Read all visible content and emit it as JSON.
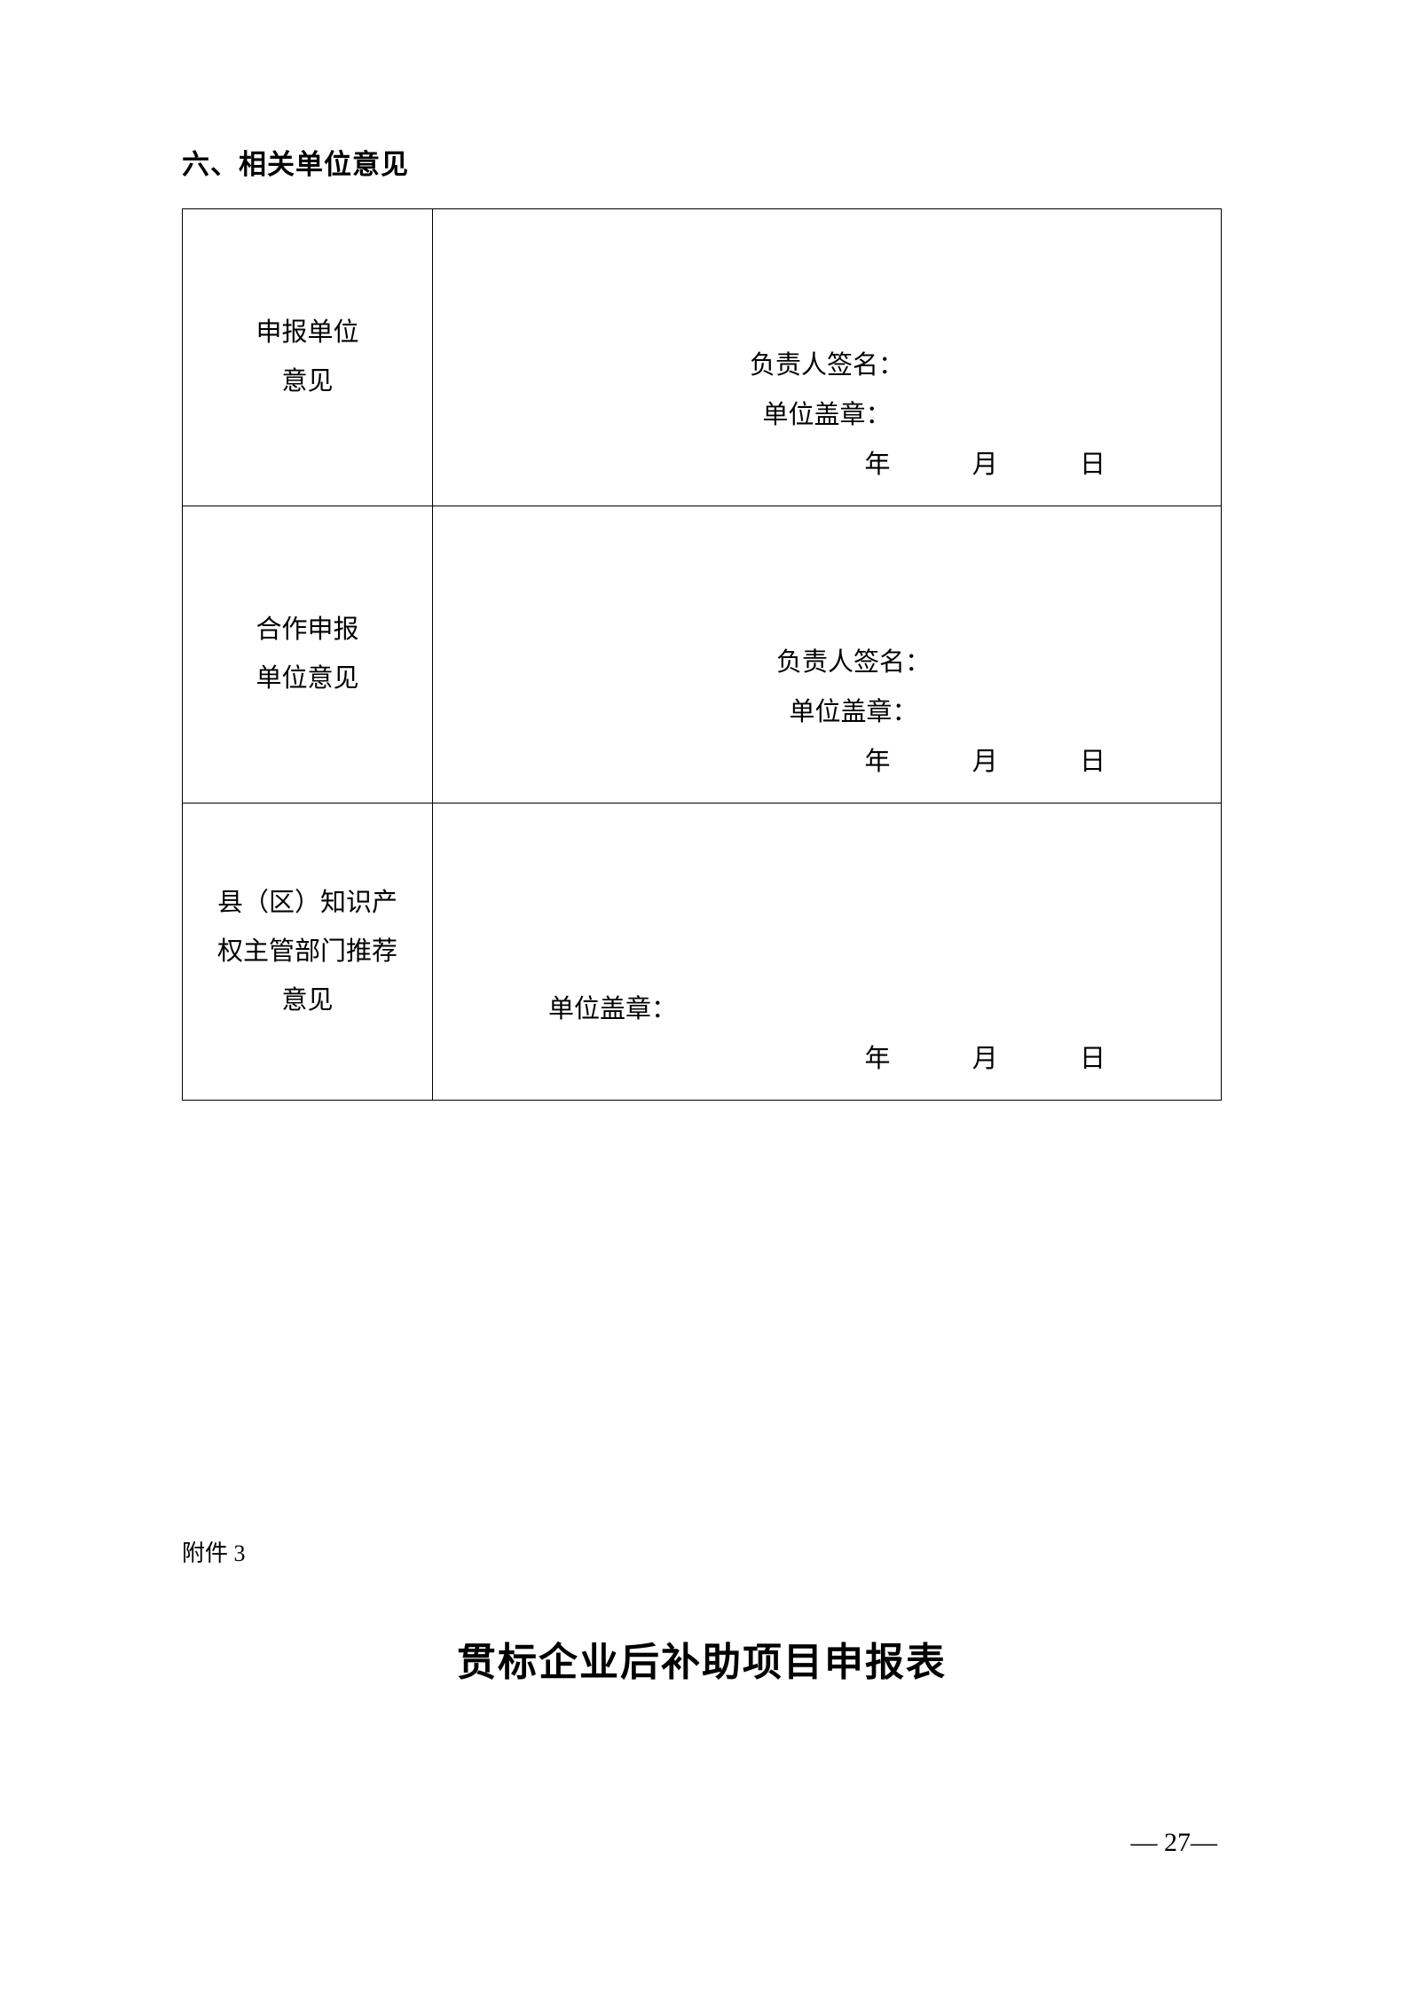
{
  "section": {
    "title": "六、相关单位意见"
  },
  "table": {
    "rows": [
      {
        "label": "申报单位\n意见",
        "sign_label": "负责人签名：",
        "seal_label": "单位盖章：",
        "date_year": "年",
        "date_month": "月",
        "date_day": "日"
      },
      {
        "label": "合作申报\n单位意见",
        "sign_label": "负责人签名：",
        "seal_label": "单位盖章：",
        "date_year": "年",
        "date_month": "月",
        "date_day": "日"
      },
      {
        "label": "县（区）知识产权主管部门推荐意见",
        "seal_label": "单位盖章：",
        "date_year": "年",
        "date_month": "月",
        "date_day": "日"
      }
    ]
  },
  "attachment": {
    "label": "附件 3"
  },
  "form": {
    "title": "贯标企业后补助项目申报表"
  },
  "page": {
    "number": "— 27—"
  },
  "styles": {
    "background_color": "#ffffff",
    "text_color": "#000000",
    "border_color": "#000000",
    "section_title_fontsize": 31,
    "body_fontsize": 29,
    "form_title_fontsize": 44,
    "attachment_fontsize": 26,
    "page_number_fontsize": 30
  }
}
